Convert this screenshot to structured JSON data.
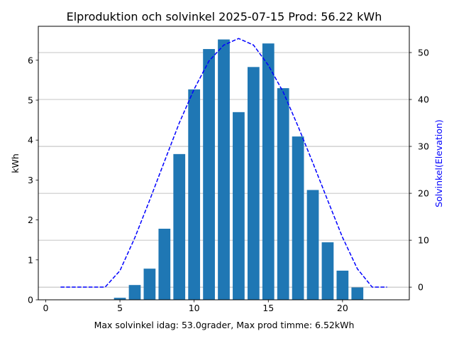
{
  "chart_data": {
    "type": "bar",
    "title": "Elproduktion och solvinkel 2025-07-15 Prod: 56.22 kWh",
    "xlabel": "Max solvinkel idag: 53.0grader, Max prod timme: 6.52kWh",
    "ylabel": "kWh",
    "y2label": "Solvinkel(Elevation)",
    "xlim": [
      -0.5,
      24.5
    ],
    "ylim": [
      0,
      6.85
    ],
    "y2lim": [
      -2.7,
      55.6
    ],
    "xticks": [
      0,
      5,
      10,
      15,
      20
    ],
    "yticks": [
      0,
      1,
      2,
      3,
      4,
      5,
      6
    ],
    "y2ticks": [
      0,
      10,
      20,
      30,
      40,
      50
    ],
    "grid": "horizontal lines at right-axis ticks",
    "series": [
      {
        "kind": "bar",
        "axis": "left",
        "color": "#1f77b4",
        "x": [
          5,
          6,
          7,
          8,
          9,
          10,
          11,
          12,
          13,
          14,
          15,
          16,
          17,
          18,
          19,
          20,
          21
        ],
        "values": [
          0.05,
          0.37,
          0.78,
          1.78,
          3.65,
          5.27,
          6.28,
          6.52,
          4.7,
          5.83,
          6.42,
          5.3,
          4.09,
          2.75,
          1.44,
          0.73,
          0.31
        ]
      },
      {
        "kind": "line",
        "axis": "right",
        "style": "dashed",
        "color": "#0000ff",
        "x": [
          1,
          2,
          3,
          4,
          5,
          6,
          7,
          8,
          9,
          10,
          11,
          12,
          13,
          14,
          15,
          16,
          17,
          18,
          19,
          20,
          21,
          22,
          23
        ],
        "values": [
          0,
          0,
          0,
          0,
          3.5,
          10.5,
          18.5,
          26.8,
          35,
          42.2,
          48.2,
          51.6,
          53.0,
          51.6,
          47.3,
          41.6,
          34.3,
          26.5,
          18.5,
          10.6,
          3.9,
          0,
          0
        ]
      }
    ]
  }
}
